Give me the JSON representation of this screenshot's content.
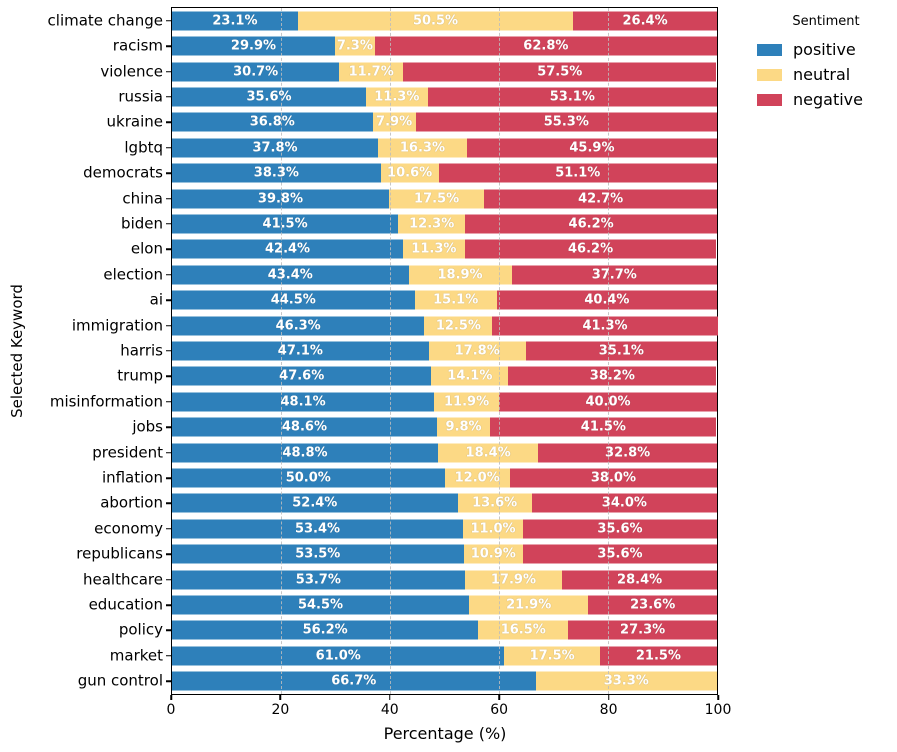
{
  "chart_data": {
    "type": "bar",
    "stacked": true,
    "orientation": "horizontal",
    "title": "",
    "xlabel": "Percentage (%)",
    "ylabel": "Selected Keyword",
    "xlim": [
      0,
      100
    ],
    "xticks": [
      0,
      20,
      40,
      60,
      80,
      100
    ],
    "grid": {
      "axis": "x",
      "style": "dashed",
      "positions": [
        20,
        40,
        60,
        80
      ]
    },
    "value_label_suffix": "%",
    "legend": {
      "title": "Sentiment",
      "position": "top-right-outside",
      "entries": [
        {
          "label": "positive",
          "color": "#2e80ba"
        },
        {
          "label": "neutral",
          "color": "#fcd985"
        },
        {
          "label": "negative",
          "color": "#d1435a"
        }
      ]
    },
    "categories": [
      "climate change",
      "racism",
      "violence",
      "russia",
      "ukraine",
      "lgbtq",
      "democrats",
      "china",
      "biden",
      "elon",
      "election",
      "ai",
      "immigration",
      "harris",
      "trump",
      "misinformation",
      "jobs",
      "president",
      "inflation",
      "abortion",
      "economy",
      "republicans",
      "healthcare",
      "education",
      "policy",
      "market",
      "gun control"
    ],
    "series": [
      {
        "name": "positive",
        "color": "#2e80ba",
        "values": [
          23.1,
          29.9,
          30.7,
          35.6,
          36.8,
          37.8,
          38.3,
          39.8,
          41.5,
          42.4,
          43.4,
          44.5,
          46.3,
          47.1,
          47.6,
          48.1,
          48.6,
          48.8,
          50.0,
          52.4,
          53.4,
          53.5,
          53.7,
          54.5,
          56.2,
          61.0,
          66.7
        ]
      },
      {
        "name": "neutral",
        "color": "#fcd985",
        "values": [
          50.5,
          7.3,
          11.7,
          11.3,
          7.9,
          16.3,
          10.6,
          17.5,
          12.3,
          11.3,
          18.9,
          15.1,
          12.5,
          17.8,
          14.1,
          11.9,
          9.8,
          18.4,
          12.0,
          13.6,
          11.0,
          10.9,
          17.9,
          21.9,
          16.5,
          17.5,
          33.3
        ]
      },
      {
        "name": "negative",
        "color": "#d1435a",
        "values": [
          26.4,
          62.8,
          57.5,
          53.1,
          55.3,
          45.9,
          51.1,
          42.7,
          46.2,
          46.2,
          37.7,
          40.4,
          41.3,
          35.1,
          38.2,
          40.0,
          41.5,
          32.8,
          38.0,
          34.0,
          35.6,
          35.6,
          28.4,
          23.6,
          27.3,
          21.5,
          0.0
        ]
      }
    ]
  },
  "colors": {
    "background": "#ffffff",
    "spine": "#000000",
    "grid": "#bdbdbd",
    "bar_label_text": "#ffffff"
  }
}
